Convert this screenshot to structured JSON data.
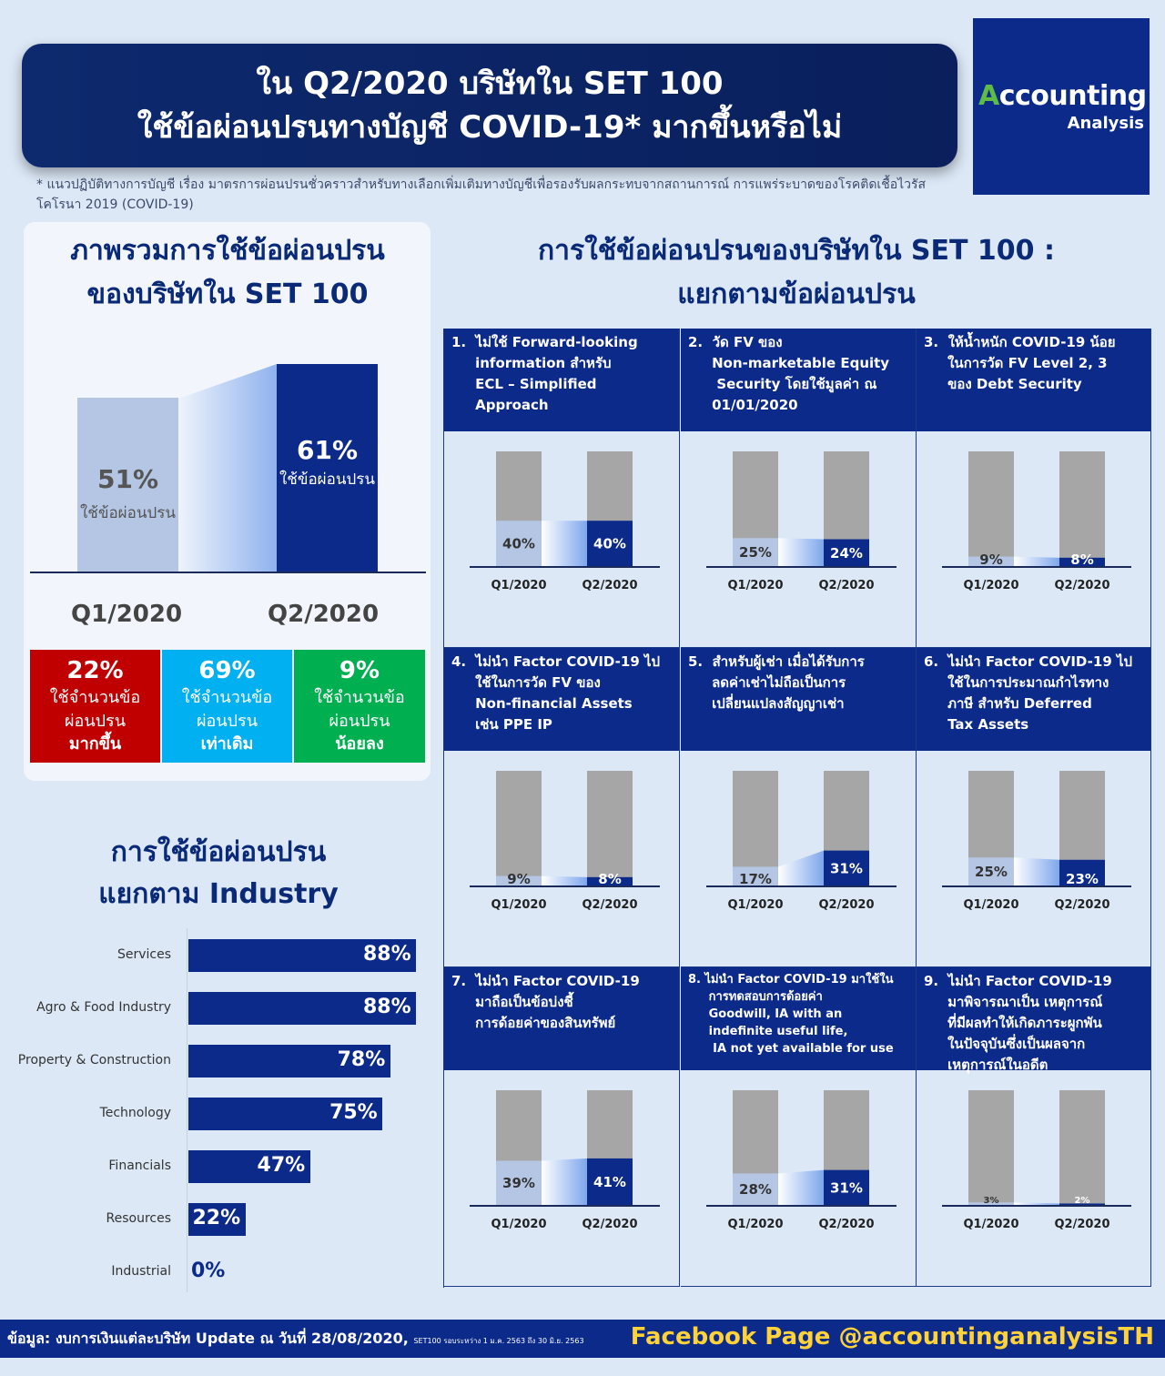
{
  "header": {
    "title_line1": "ใน Q2/2020 บริษัทใน SET 100",
    "title_line2": "ใช้ข้อผ่อนปรนทางบัญชี COVID-19* มากขึ้นหรือไม่"
  },
  "logo": {
    "line1_dot": "A",
    "line1_rest": "ccounting",
    "line2": "Analysis"
  },
  "footnote": "*  แนวปฏิบัติทางการบัญชี เรื่อง มาตรการผ่อนปรนชั่วคราวสำหรับทางเลือกเพิ่มเติมทางบัญชีเพื่อรองรับผลกระทบจากสถานการณ์ การแพร่ระบาดของโรคติดเชื้อไวรัสโคโรนา 2019 (COVID-19)",
  "overview": {
    "title_line1": "ภาพรวมการใช้ข้อผ่อนปรน",
    "title_line2": "ของบริษัทใน SET 100",
    "q1_label": "Q1/2020",
    "q2_label": "Q2/2020",
    "q1_pct": "51%",
    "q2_pct": "61%",
    "bar_text": "ใช้ข้อผ่อนปรน",
    "q1_color": "#b4c6e4",
    "q2_color": "#0c2a8a",
    "summary": [
      {
        "pct": "22%",
        "line1": "ใช้จำนวนข้อ",
        "line2": "ผ่อนปรน",
        "strong": "มากขึ้น",
        "color": "#c00000"
      },
      {
        "pct": "69%",
        "line1": "ใช้จำนวนข้อ",
        "line2": "ผ่อนปรน",
        "strong": "เท่าเดิม",
        "color": "#00b0f0"
      },
      {
        "pct": "9%",
        "line1": "ใช้จำนวนข้อ",
        "line2": "ผ่อนปรน",
        "strong": "น้อยลง",
        "color": "#00b050"
      }
    ]
  },
  "relief": {
    "title_line1": "การใช้ข้อผ่อนปรนของบริษัทใน SET 100 :",
    "title_line2": "แยกตามข้อผ่อนปรน",
    "q1_label": "Q1/2020",
    "q2_label": "Q2/2020"
  },
  "industry": {
    "title_line1": "การใช้ข้อผ่อนปรน",
    "title_line2": "แยกตาม Industry"
  },
  "chart_data": [
    {
      "type": "bar",
      "title": "ภาพรวมการใช้ข้อผ่อนปรนของบริษัทใน SET 100",
      "categories": [
        "Q1/2020",
        "Q2/2020"
      ],
      "values": [
        51,
        61
      ],
      "unit": "%"
    },
    {
      "type": "bar",
      "title": "การใช้ข้อผ่อนปรนของบริษัทใน SET 100 : แยกตามข้อผ่อนปรน",
      "categories": [
        "Q1/2020",
        "Q2/2020"
      ],
      "panels": [
        {
          "label": "1.  ไม่ใช้ Forward-looking\n     information สำหรับ\n     ECL – Simplified\n     Approach",
          "values": [
            40,
            40
          ],
          "display": [
            "40%",
            "40%"
          ]
        },
        {
          "label": "2.  วัด FV ของ\n     Non-marketable Equity\n      Security โดยใช้มูลค่า ณ\n     01/01/2020",
          "values": [
            25,
            24
          ],
          "display": [
            "25%",
            "24%"
          ]
        },
        {
          "label": "3.  ให้น้ำหนัก COVID-19 น้อย\n     ในการวัด FV Level 2, 3\n     ของ Debt Security",
          "values": [
            9,
            8
          ],
          "display": [
            "9%",
            "8%"
          ]
        },
        {
          "label": "4.  ไม่นำ Factor COVID-19 ไป\n     ใช้ในการวัด FV ของ\n     Non-financial Assets\n     เช่น PPE IP",
          "values": [
            9,
            8
          ],
          "display": [
            "9%",
            "8%"
          ]
        },
        {
          "label": "5.  สำหรับผู้เช่า เมื่อได้รับการ\n     ลดค่าเช่าไม่ถือเป็นการ\n     เปลี่ยนแปลงสัญญาเช่า",
          "values": [
            17,
            31
          ],
          "display": [
            "17%",
            "31%"
          ]
        },
        {
          "label": "6.  ไม่นำ Factor COVID-19 ไป\n     ใช้ในการประมาณกำไรทาง\n     ภาษี สำหรับ Deferred\n     Tax Assets",
          "values": [
            25,
            23
          ],
          "display": [
            "25%",
            "23%"
          ]
        },
        {
          "label": "7.  ไม่นำ Factor COVID-19\n     มาถือเป็นข้อบ่งชี้\n     การด้อยค่าของสินทรัพย์",
          "values": [
            39,
            41
          ],
          "display": [
            "39%",
            "41%"
          ]
        },
        {
          "label": "8. ไม่นำ Factor COVID-19 มาใช้ใน\n     การทดสอบการด้อยค่า\n     Goodwill, IA with an\n     indefinite useful life,\n      IA not yet available for use",
          "values": [
            28,
            31
          ],
          "display": [
            "28%",
            "31%"
          ],
          "small": true
        },
        {
          "label": "9.  ไม่นำ Factor COVID-19\n     มาพิจารณาเป็น เหตุการณ์\n     ที่มีผลทำให้เกิดภาระผูกพัน\n     ในปัจจุบันซึ่งเป็นผลจาก\n     เหตุการณ์ในอดีต",
          "values": [
            3,
            2
          ],
          "display": [
            "3%",
            "2%"
          ]
        }
      ]
    },
    {
      "type": "bar",
      "title": "การใช้ข้อผ่อนปรน แยกตาม Industry",
      "orientation": "horizontal",
      "categories": [
        "Services",
        "Agro & Food Industry",
        "Property & Construction",
        "Technology",
        "Financials",
        "Resources",
        "Industrial"
      ],
      "values": [
        88,
        88,
        78,
        75,
        47,
        22,
        0
      ],
      "display": [
        "88%",
        "88%",
        "78%",
        "75%",
        "47%",
        "22%",
        "0%"
      ]
    }
  ],
  "footer": {
    "source": "ข้อมูล: งบการเงินแต่ละบริษัท Update ณ วันที่ 28/08/2020,",
    "source_small": "SET100 รอบระหว่าง 1 ม.ค. 2563 ถึง 30 มิ.ย. 2563",
    "facebook": "Facebook Page @accountinganalysisTH"
  },
  "colors": {
    "navy": "#0c2a8a",
    "light_blue": "#b4c6e4",
    "grey": "#a6a6a6"
  }
}
